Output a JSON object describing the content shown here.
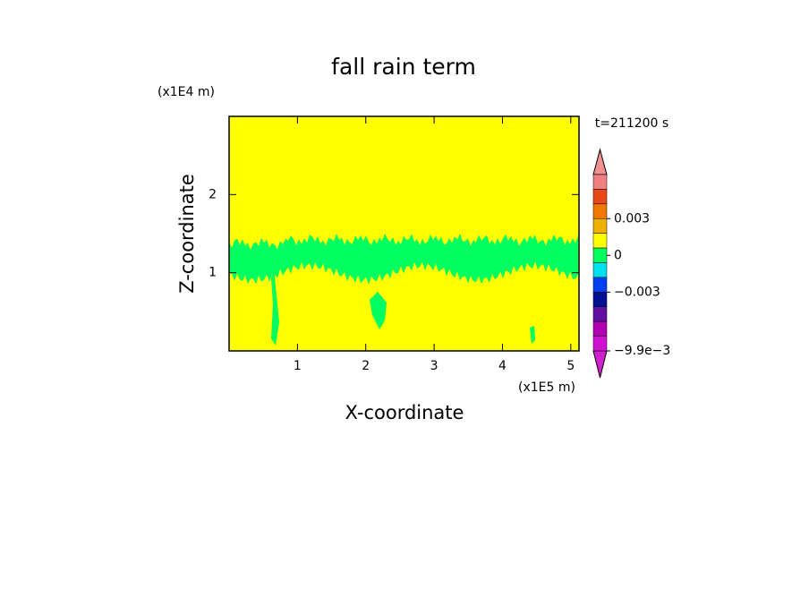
{
  "chart_data": {
    "type": "contour",
    "title": "fall rain term",
    "x_label": "X-coordinate",
    "y_label": "Z-coordinate",
    "x_unit": "(x1E5 m)",
    "y_unit": "(x1E4 m)",
    "annotation": "t=211200 s",
    "xlim": [
      0,
      5.12
    ],
    "xticks": [
      1,
      2,
      3,
      4,
      5
    ],
    "ylim": [
      0,
      3
    ],
    "yticks": [
      1,
      2
    ],
    "background_color": "#ffff00",
    "region_color": "#00ff60",
    "colorbar": {
      "boundaries": [
        0.0075,
        0.006,
        0.0045,
        0.003,
        0.0015,
        0.0005,
        -0.0005,
        -0.0015,
        -0.003,
        -0.0045,
        -0.006,
        -0.008,
        -0.0099
      ],
      "colors": [
        "#f08080",
        "#e84818",
        "#f07800",
        "#f0b000",
        "#ffff00",
        "#00ff60",
        "#00e0f0",
        "#0040f0",
        "#001090",
        "#6010a0",
        "#b000b0",
        "#d010d0"
      ],
      "over_color": "#f09090",
      "under_color": "#d020d0",
      "ticks": [
        0.003,
        0,
        {
          "value": -0.003,
          "label": "−0.003"
        },
        {
          "value": -0.0099,
          "label": "−9.9e−3"
        }
      ]
    }
  }
}
